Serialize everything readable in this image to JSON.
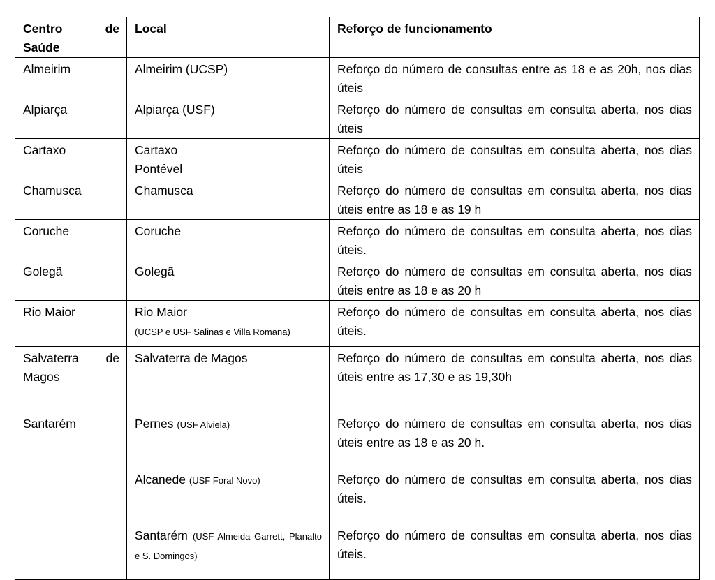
{
  "table": {
    "header": [
      "Centro de Saúde",
      "Local",
      "Reforço de funcionamento"
    ],
    "rows": [
      {
        "centro": "Almeirim",
        "local": [
          {
            "name": "Almeirim (UCSP)"
          }
        ],
        "reforco": [
          "Reforço do número de consultas entre as 18 e as 20h, nos dias úteis"
        ]
      },
      {
        "centro": "Alpiarça",
        "local": [
          {
            "name": "Alpiarça (USF)"
          }
        ],
        "reforco": [
          "Reforço do número de consultas em consulta aberta, nos dias úteis"
        ]
      },
      {
        "centro": "Cartaxo",
        "local": [
          {
            "name": "Cartaxo"
          },
          {
            "name": "Pontével"
          }
        ],
        "reforco": [
          "Reforço do número de consultas em consulta aberta, nos dias úteis"
        ]
      },
      {
        "centro": "Chamusca",
        "local": [
          {
            "name": "Chamusca"
          }
        ],
        "reforco": [
          "Reforço do número de consultas em consulta aberta, nos dias úteis entre as 18 e as 19 h"
        ]
      },
      {
        "centro": "Coruche",
        "local": [
          {
            "name": "Coruche"
          }
        ],
        "reforco": [
          "Reforço do número de consultas em consulta aberta, nos dias úteis."
        ]
      },
      {
        "centro": "Golegã",
        "local": [
          {
            "name": "Golegã"
          }
        ],
        "reforco": [
          "Reforço do número de consultas em consulta aberta, nos dias úteis entre as 18 e as 20 h"
        ]
      },
      {
        "centro": "Rio Maior",
        "local": [
          {
            "name": "Rio Maior",
            "note": "(UCSP e USF Salinas e Villa Romana)"
          }
        ],
        "reforco": [
          "Reforço do número de consultas em consulta aberta, nos dias úteis."
        ]
      },
      {
        "centro": "Salvaterra de Magos",
        "local": [
          {
            "name": "Salvaterra de Magos"
          }
        ],
        "reforco": [
          "Reforço do número de consultas em consulta aberta, nos dias úteis entre as 17,30 e as 19,30h"
        ]
      },
      {
        "centro": "Santarém",
        "local": [
          {
            "name": "Pernes",
            "note": "(USF Alviela)"
          },
          {
            "name": "Alcanede",
            "note": "(USF Foral Novo)"
          },
          {
            "name": "Santarém",
            "note": "(USF Almeida Garrett, Planalto e S. Domingos)"
          }
        ],
        "reforco": [
          "Reforço do número de consultas em consulta aberta, nos dias úteis entre as 18 e as 20 h.",
          "Reforço do número de consultas em consulta aberta, nos dias úteis.",
          "Reforço do número de consultas em consulta aberta, nos dias úteis."
        ]
      }
    ]
  }
}
